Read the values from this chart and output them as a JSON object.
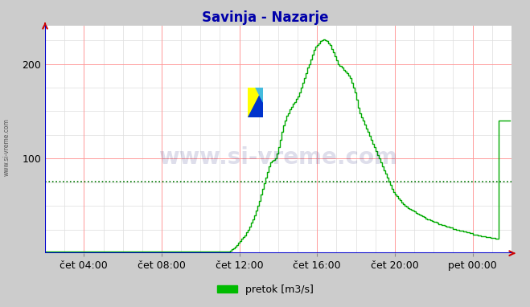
{
  "title": "Savinja - Nazarje",
  "title_color": "#0000aa",
  "title_fontsize": 12,
  "background_color": "#cccccc",
  "plot_bg_color": "#ffffff",
  "xlim": [
    0,
    288
  ],
  "ylim": [
    0,
    240
  ],
  "yticks": [
    100,
    200
  ],
  "ytick_labels": [
    "100",
    "200"
  ],
  "xtick_positions": [
    24,
    72,
    120,
    168,
    216,
    264
  ],
  "xtick_labels": [
    "čet 04:00",
    "čet 08:00",
    "čet 12:00",
    "čet 16:00",
    "čet 20:00",
    "pet 00:00"
  ],
  "grid_color_major": "#ff9999",
  "grid_color_minor": "#dddddd",
  "line_color": "#00aa00",
  "axis_color": "#0000cc",
  "watermark_text": "www.si-vreme.com",
  "watermark_color": "#000066",
  "watermark_alpha": 0.13,
  "legend_label": "pretok [m3/s]",
  "legend_color": "#00bb00",
  "avg_line_value": 76,
  "avg_line_color": "#007700",
  "flow_data": [
    2,
    2,
    2,
    2,
    2,
    2,
    2,
    2,
    2,
    2,
    2,
    2,
    2,
    2,
    2,
    2,
    2,
    2,
    2,
    2,
    2,
    2,
    2,
    2,
    2,
    2,
    2,
    2,
    2,
    2,
    2,
    2,
    2,
    2,
    2,
    2,
    2,
    2,
    2,
    2,
    2,
    2,
    2,
    2,
    2,
    2,
    2,
    2,
    2,
    2,
    2,
    2,
    2,
    2,
    2,
    2,
    2,
    2,
    2,
    2,
    2,
    2,
    2,
    2,
    2,
    2,
    2,
    2,
    2,
    2,
    2,
    2,
    2,
    2,
    2,
    2,
    2,
    2,
    2,
    2,
    2,
    2,
    2,
    2,
    2,
    2,
    2,
    2,
    2,
    2,
    2,
    2,
    2,
    2,
    2,
    2,
    2,
    2,
    2,
    2,
    2,
    2,
    2,
    2,
    2,
    2,
    2,
    2,
    2,
    2,
    2,
    2,
    2,
    2,
    3,
    4,
    5,
    7,
    9,
    11,
    13,
    15,
    17,
    19,
    22,
    25,
    28,
    32,
    36,
    40,
    45,
    50,
    55,
    62,
    68,
    74,
    80,
    86,
    92,
    96,
    98,
    99,
    100,
    105,
    112,
    120,
    128,
    135,
    140,
    145,
    148,
    152,
    155,
    158,
    160,
    163,
    166,
    170,
    175,
    180,
    185,
    190,
    196,
    200,
    205,
    210,
    215,
    218,
    220,
    222,
    224,
    225,
    226,
    225,
    224,
    222,
    220,
    216,
    212,
    208,
    204,
    200,
    198,
    196,
    194,
    192,
    190,
    188,
    185,
    180,
    175,
    170,
    162,
    154,
    148,
    144,
    140,
    136,
    132,
    128,
    124,
    120,
    116,
    112,
    108,
    104,
    100,
    96,
    92,
    88,
    84,
    80,
    76,
    72,
    68,
    65,
    62,
    60,
    58,
    56,
    54,
    52,
    50,
    49,
    48,
    47,
    46,
    45,
    44,
    43,
    42,
    41,
    40,
    39,
    38,
    37,
    36,
    36,
    35,
    34,
    33,
    33,
    32,
    31,
    31,
    30,
    30,
    29,
    28,
    28,
    27,
    27,
    26,
    26,
    25,
    25,
    24,
    24,
    23,
    23,
    22,
    22,
    21,
    21,
    20,
    20,
    20,
    19,
    19,
    18,
    18,
    18,
    17,
    17,
    17,
    16,
    16,
    16,
    15,
    15,
    140,
    140,
    140,
    140,
    140,
    140,
    140,
    140
  ]
}
